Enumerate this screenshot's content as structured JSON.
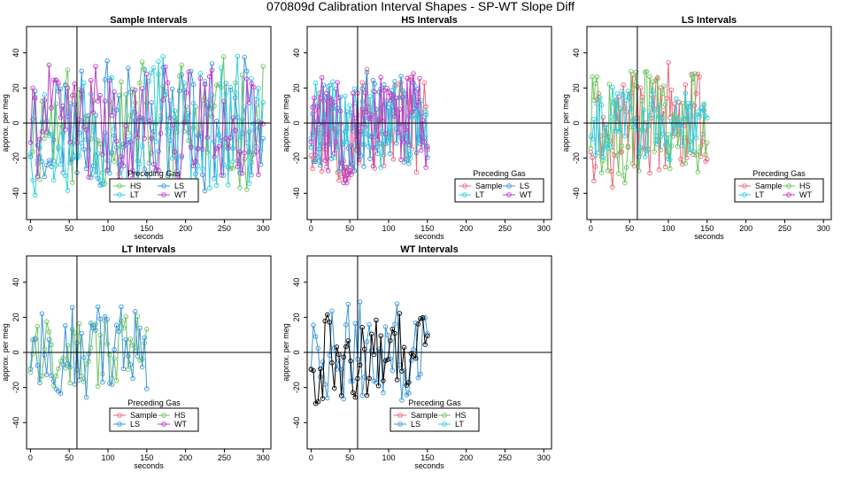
{
  "title": "070809d   Calibration Interval Shapes - SP-WT Slope Diff",
  "colors": {
    "Sample": "#e8697a",
    "HS": "#6cc45f",
    "LS": "#3b97d8",
    "LT": "#2ecfe0",
    "WT": "#c03cc6",
    "self": "#000000"
  },
  "chart_data": [
    {
      "type": "line",
      "title": "Sample Intervals",
      "xlabel": "seconds",
      "ylabel": "approx. per meg",
      "xlim": [
        -5,
        310
      ],
      "ylim": [
        -55,
        55
      ],
      "xticks": [
        0,
        50,
        100,
        150,
        200,
        250,
        300
      ],
      "yticks": [
        -40,
        -20,
        0,
        20,
        40
      ],
      "vline": 60,
      "hline": 0,
      "legend": {
        "title": "Preceding Gas",
        "position": "bottom-center",
        "cols": 2,
        "entries": [
          "HS",
          "LS",
          "LT",
          "WT"
        ]
      },
      "series": [
        {
          "name": "HS",
          "x_max": 300,
          "step": 3,
          "amp": 30,
          "seed": 11
        },
        {
          "name": "LS",
          "x_max": 300,
          "step": 3,
          "amp": 32,
          "seed": 23
        },
        {
          "name": "LT",
          "x_max": 300,
          "step": 3,
          "amp": 34,
          "seed": 37
        },
        {
          "name": "WT",
          "x_max": 300,
          "step": 3,
          "amp": 28,
          "seed": 41
        }
      ]
    },
    {
      "type": "line",
      "title": "HS Intervals",
      "xlabel": "seconds",
      "ylabel": "approx. per meg",
      "xlim": [
        -5,
        310
      ],
      "ylim": [
        -55,
        55
      ],
      "xticks": [
        0,
        50,
        100,
        150,
        200,
        250,
        300
      ],
      "yticks": [
        -40,
        -20,
        0,
        20,
        40
      ],
      "vline": 60,
      "hline": 0,
      "legend": {
        "title": "Preceding Gas",
        "position": "bottom-right",
        "cols": 2,
        "entries": [
          "Sample",
          "LS",
          "LT",
          "WT"
        ]
      },
      "series": [
        {
          "name": "Sample",
          "x_max": 150,
          "step": 2,
          "amp": 28,
          "seed": 53
        },
        {
          "name": "LS",
          "x_max": 150,
          "step": 2,
          "amp": 24,
          "seed": 67
        },
        {
          "name": "LT",
          "x_max": 150,
          "step": 2,
          "amp": 20,
          "seed": 71
        },
        {
          "name": "WT",
          "x_max": 150,
          "step": 2,
          "amp": 26,
          "seed": 83
        }
      ]
    },
    {
      "type": "line",
      "title": "LS Intervals",
      "xlabel": "seconds",
      "ylabel": "approx. per meg",
      "xlim": [
        -5,
        310
      ],
      "ylim": [
        -55,
        55
      ],
      "xticks": [
        0,
        50,
        100,
        150,
        200,
        250,
        300
      ],
      "yticks": [
        -40,
        -20,
        0,
        20,
        40
      ],
      "vline": 60,
      "hline": 0,
      "legend": {
        "title": "Preceding Gas",
        "position": "bottom-right",
        "cols": 2,
        "entries": [
          "Sample",
          "HS",
          "LT",
          "WT"
        ]
      },
      "series": [
        {
          "name": "Sample",
          "x_max": 150,
          "step": 2,
          "amp": 26,
          "seed": 97
        },
        {
          "name": "HS",
          "x_max": 150,
          "step": 2,
          "amp": 28,
          "seed": 101
        },
        {
          "name": "LT",
          "x_max": 150,
          "step": 2,
          "amp": 16,
          "seed": 113
        }
      ]
    },
    {
      "type": "line",
      "title": "LT Intervals",
      "xlabel": "seconds",
      "ylabel": "approx. per meg",
      "xlim": [
        -5,
        310
      ],
      "ylim": [
        -55,
        55
      ],
      "xticks": [
        0,
        50,
        100,
        150,
        200,
        250,
        300
      ],
      "yticks": [
        -40,
        -20,
        0,
        20,
        40
      ],
      "vline": 60,
      "hline": 0,
      "legend": {
        "title": "Preceding Gas",
        "position": "bottom-center",
        "cols": 2,
        "entries": [
          "Sample",
          "HS",
          "LS",
          "WT"
        ]
      },
      "series": [
        {
          "name": "HS",
          "x_max": 150,
          "step": 3,
          "amp": 18,
          "seed": 131
        },
        {
          "name": "LS",
          "x_max": 150,
          "step": 3,
          "amp": 24,
          "seed": 137
        }
      ]
    },
    {
      "type": "line",
      "title": "WT Intervals",
      "xlabel": "seconds",
      "ylabel": "approx. per meg",
      "xlim": [
        -5,
        310
      ],
      "ylim": [
        -55,
        55
      ],
      "xticks": [
        0,
        50,
        100,
        150,
        200,
        250,
        300
      ],
      "yticks": [
        -40,
        -20,
        0,
        20,
        40
      ],
      "vline": 60,
      "hline": 0,
      "legend": {
        "title": "Preceding Gas",
        "position": "bottom-center",
        "cols": 2,
        "entries": [
          "Sample",
          "HS",
          "LS",
          "LT"
        ]
      },
      "series": [
        {
          "name": "LS",
          "x_max": 150,
          "step": 3,
          "amp": 26,
          "seed": 149
        },
        {
          "name": "self",
          "x_max": 150,
          "step": 3,
          "amp": 22,
          "seed": 157
        }
      ]
    }
  ]
}
